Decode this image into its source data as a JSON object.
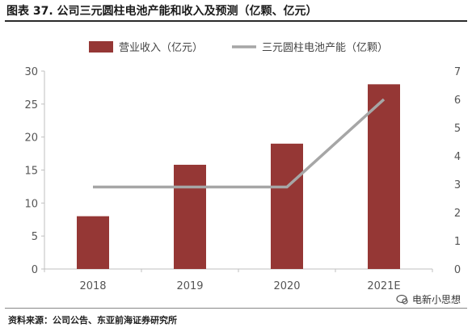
{
  "figure": {
    "title": "图表 37. 公司三元圆柱电池产能和收入及预测（亿颗、亿元）",
    "source": "资料来源：公司公告、东亚前海证券研究所",
    "watermark": "电新小思想"
  },
  "colors": {
    "bar": "#953735",
    "line": "#a6a6a6",
    "axis": "#bfbfbf",
    "tick_text": "#555555"
  },
  "chart_data": {
    "type": "bar",
    "categories": [
      "2018",
      "2019",
      "2020",
      "2021E"
    ],
    "series": [
      {
        "name": "营业收入（亿元）",
        "type": "bar",
        "axis": "left",
        "values": [
          8,
          15.8,
          19,
          28
        ]
      },
      {
        "name": "三元圆柱电池产能（亿颗）",
        "type": "line",
        "axis": "right",
        "values": [
          2.9,
          2.9,
          2.9,
          6
        ]
      }
    ],
    "y_left": {
      "min": 0,
      "max": 30,
      "ticks": [
        0,
        5,
        10,
        15,
        20,
        25,
        30
      ]
    },
    "y_right": {
      "min": 0,
      "max": 7,
      "ticks": [
        0,
        1,
        2,
        3,
        4,
        5,
        6,
        7
      ]
    },
    "legend_position": "top",
    "grid": false
  }
}
